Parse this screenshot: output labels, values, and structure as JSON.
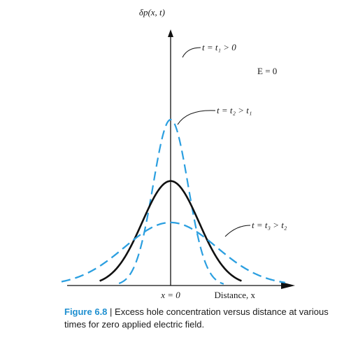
{
  "chart_data": {
    "type": "line",
    "title": "",
    "ylabel": "δp(x, t)",
    "xlabel": "Distance, x",
    "x_origin_label": "x = 0",
    "field_label": "E = 0",
    "xlim": [
      -3,
      3
    ],
    "ylim": [
      0,
      1
    ],
    "series": [
      {
        "name": "t = t₁ > 0",
        "style": "dashed",
        "color": "#2b9fe0",
        "peak": 1.0,
        "sigma": 0.48
      },
      {
        "name": "t = t₂ > t₁",
        "style": "solid",
        "color": "#111111",
        "peak": 0.63,
        "sigma": 0.78
      },
      {
        "name": "t = t₃ > t₂",
        "style": "dashed",
        "color": "#2b9fe0",
        "peak": 0.38,
        "sigma": 1.27
      }
    ]
  },
  "caption": {
    "figure_number": "Figure 6.8",
    "separator": " | ",
    "text": "Excess hole concentration versus distance at various times for zero applied electric field."
  },
  "colors": {
    "accent": "#2b9fe0",
    "caption_label": "#1e8fd0"
  }
}
